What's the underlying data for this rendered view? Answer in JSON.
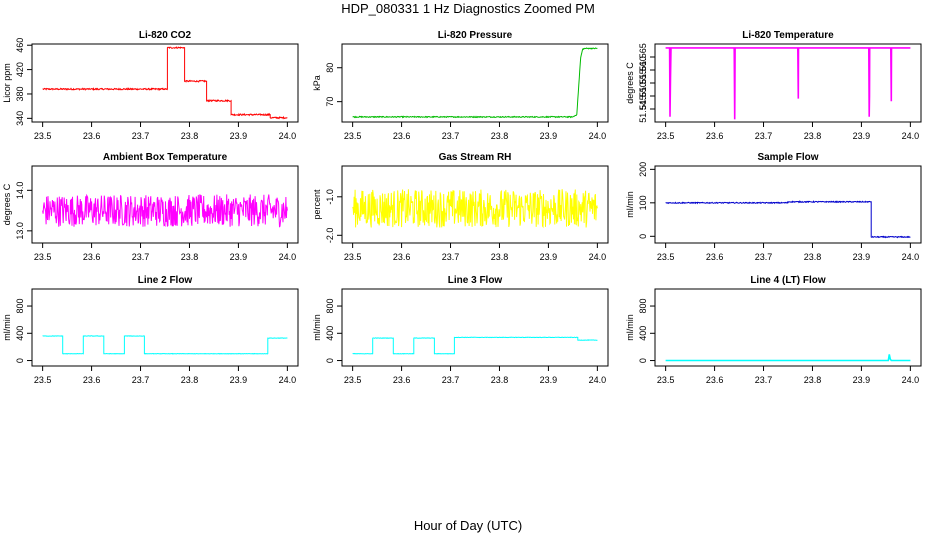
{
  "figure": {
    "title": "HDP_080331  1 Hz Diagnostics Zoomed PM",
    "xlabel": "Hour of Day (UTC)"
  },
  "chart_data": [
    {
      "type": "line",
      "title": "Li-820 CO2",
      "ylabel": "Licor ppm",
      "color": "#ff0000",
      "xlim": [
        23.5,
        24.0
      ],
      "xticks": [
        "23.5",
        "23.6",
        "23.7",
        "23.8",
        "23.9",
        "24.0"
      ],
      "ylim": [
        334,
        462
      ],
      "yticks": [
        "340",
        "380",
        "420",
        "460"
      ],
      "noise": 1.2,
      "series": [
        {
          "x": [
            23.5,
            23.755,
            23.755,
            23.79,
            23.79,
            23.835,
            23.835,
            23.885,
            23.885,
            23.965,
            23.965,
            24.0
          ],
          "values": [
            388,
            388,
            456,
            456,
            401,
            401,
            369,
            369,
            346,
            346,
            341,
            341
          ]
        }
      ]
    },
    {
      "type": "line",
      "title": "Li-820 Pressure",
      "ylabel": "kPa",
      "color": "#00bb00",
      "xlim": [
        23.5,
        24.0
      ],
      "xticks": [
        "23.5",
        "23.6",
        "23.7",
        "23.8",
        "23.9",
        "24.0"
      ],
      "ylim": [
        64.0,
        87.0
      ],
      "yticks": [
        "70",
        "80"
      ],
      "noise": 0.15,
      "series": [
        {
          "x": [
            23.5,
            23.95,
            23.958,
            23.962,
            23.966,
            23.97,
            23.975,
            24.0
          ],
          "values": [
            65.5,
            65.5,
            66.2,
            75.0,
            83.0,
            85.5,
            85.7,
            85.7
          ]
        }
      ]
    },
    {
      "type": "line",
      "title": "Li-820 Temperature",
      "ylabel": "degrees C",
      "color": "#ff00ff",
      "xlim": [
        23.5,
        24.0
      ],
      "xticks": [
        "23.5",
        "23.6",
        "23.7",
        "23.8",
        "23.9",
        "24.0"
      ],
      "ylim": [
        51.54,
        51.57
      ],
      "yticks": [
        "51.545",
        "51.550",
        "51.555",
        "51.560",
        "51.565"
      ],
      "series": [
        {
          "x": [
            23.5,
            23.508,
            23.509,
            23.51,
            23.511,
            23.64,
            23.641,
            23.6415,
            23.642,
            23.643,
            23.77,
            23.771,
            23.7715,
            23.772,
            23.915,
            23.916,
            23.9165,
            23.917,
            23.96,
            23.961,
            23.9615,
            23.962,
            24.0
          ],
          "values": [
            51.5685,
            51.5685,
            51.542,
            51.557,
            51.5685,
            51.5685,
            51.541,
            51.553,
            51.5685,
            51.5685,
            51.5685,
            51.549,
            51.5685,
            51.5685,
            51.5685,
            51.542,
            51.55,
            51.5685,
            51.5685,
            51.548,
            51.5685,
            51.5685,
            51.5685
          ]
        }
      ]
    },
    {
      "type": "line",
      "title": "Ambient Box Temperature",
      "ylabel": "degrees C",
      "color": "#ff00ff",
      "xlim": [
        23.5,
        24.0
      ],
      "xticks": [
        "23.5",
        "23.6",
        "23.7",
        "23.8",
        "23.9",
        "24.0"
      ],
      "ylim": [
        12.7,
        14.6
      ],
      "yticks": [
        "13.0",
        "14.0"
      ],
      "noise": 0.4,
      "series": [
        {
          "x": [
            23.5,
            24.0
          ],
          "values": [
            13.5,
            13.5
          ]
        }
      ]
    },
    {
      "type": "line",
      "title": "Gas Stream RH",
      "ylabel": "percent",
      "color": "#ffff00",
      "xlim": [
        23.5,
        24.0
      ],
      "xticks": [
        "23.5",
        "23.6",
        "23.7",
        "23.8",
        "23.9",
        "24.0"
      ],
      "ylim": [
        -2.2,
        -0.2
      ],
      "yticks": [
        "-2.0",
        "-1.0"
      ],
      "noise": 0.5,
      "series": [
        {
          "x": [
            23.5,
            24.0
          ],
          "values": [
            -1.3,
            -1.3
          ]
        }
      ]
    },
    {
      "type": "line",
      "title": "Sample Flow",
      "ylabel": "ml/min",
      "color": "#0000cc",
      "xlim": [
        23.5,
        24.0
      ],
      "xticks": [
        "23.5",
        "23.6",
        "23.7",
        "23.8",
        "23.9",
        "24.0"
      ],
      "ylim": [
        -20,
        210
      ],
      "yticks": [
        "0",
        "100",
        "200"
      ],
      "noise": 1.5,
      "series": [
        {
          "x": [
            23.5,
            23.75,
            23.75,
            23.92,
            23.92,
            24.0
          ],
          "values": [
            100,
            100,
            103,
            103,
            -2,
            -2
          ]
        }
      ]
    },
    {
      "type": "line",
      "title": "Line 2 Flow",
      "ylabel": "ml/min",
      "color": "#00ffff",
      "xlim": [
        23.5,
        24.0
      ],
      "xticks": [
        "23.5",
        "23.6",
        "23.7",
        "23.8",
        "23.9",
        "24.0"
      ],
      "ylim": [
        -80,
        1050
      ],
      "yticks": [
        "0",
        "400",
        "800"
      ],
      "noise": 3,
      "series": [
        {
          "x": [
            23.5,
            23.541,
            23.541,
            23.583,
            23.583,
            23.625,
            23.625,
            23.667,
            23.667,
            23.708,
            23.708,
            23.96,
            23.96,
            24.0
          ],
          "values": [
            360,
            360,
            100,
            100,
            360,
            360,
            100,
            100,
            360,
            360,
            100,
            100,
            330,
            330
          ]
        }
      ]
    },
    {
      "type": "line",
      "title": "Line 3 Flow",
      "ylabel": "ml/min",
      "color": "#00ffff",
      "xlim": [
        23.5,
        24.0
      ],
      "xticks": [
        "23.5",
        "23.6",
        "23.7",
        "23.8",
        "23.9",
        "24.0"
      ],
      "ylim": [
        -80,
        1050
      ],
      "yticks": [
        "0",
        "400",
        "800"
      ],
      "noise": 3,
      "series": [
        {
          "x": [
            23.5,
            23.541,
            23.541,
            23.583,
            23.583,
            23.625,
            23.625,
            23.667,
            23.667,
            23.708,
            23.708,
            23.96,
            23.96,
            24.0
          ],
          "values": [
            100,
            100,
            330,
            330,
            100,
            100,
            330,
            330,
            100,
            100,
            340,
            340,
            300,
            300
          ]
        }
      ]
    },
    {
      "type": "line",
      "title": "Line 4 (LT) Flow",
      "ylabel": "ml/min",
      "color": "#00ffff",
      "xlim": [
        23.5,
        24.0
      ],
      "xticks": [
        "23.5",
        "23.6",
        "23.7",
        "23.8",
        "23.9",
        "24.0"
      ],
      "ylim": [
        -80,
        1050
      ],
      "yticks": [
        "0",
        "400",
        "800"
      ],
      "series": [
        {
          "x": [
            23.5,
            23.955,
            23.957,
            23.959,
            23.961,
            24.0
          ],
          "values": [
            0,
            0,
            90,
            20,
            0,
            0
          ]
        }
      ]
    }
  ]
}
